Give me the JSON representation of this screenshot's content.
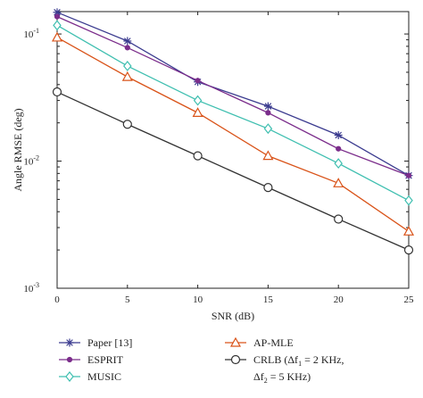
{
  "chart_data": {
    "type": "line",
    "xlabel": "SNR (dB)",
    "ylabel": "Angle RMSE (deg)",
    "xlim": [
      0,
      25
    ],
    "ylim": [
      0.001,
      0.15
    ],
    "yscale": "log",
    "grid": false,
    "legend_position": "below",
    "x": [
      0,
      5,
      10,
      15,
      20,
      25
    ],
    "x_tick_labels": [
      "0",
      "5",
      "10",
      "15",
      "20",
      "25"
    ],
    "y_tick_labels": [
      {
        "value": 0.1,
        "base": "10",
        "exp": "-1"
      },
      {
        "value": 0.01,
        "base": "10",
        "exp": "-2"
      },
      {
        "value": 0.001,
        "base": "10",
        "exp": "-3"
      }
    ],
    "series": [
      {
        "name": "Paper [13]",
        "color": "#3b3b8f",
        "marker": "star",
        "values": [
          0.148,
          0.088,
          0.042,
          0.027,
          0.016,
          0.0077
        ]
      },
      {
        "name": "ESPRIT",
        "color": "#7b2d8b",
        "marker": "dot",
        "values": [
          0.137,
          0.078,
          0.043,
          0.024,
          0.0125,
          0.0077
        ]
      },
      {
        "name": "MUSIC",
        "color": "#3fbfb0",
        "marker": "diamond",
        "values": [
          0.117,
          0.056,
          0.03,
          0.018,
          0.0096,
          0.0049
        ]
      },
      {
        "name": "AP-MLE",
        "color": "#d95319",
        "marker": "triangle",
        "values": [
          0.094,
          0.046,
          0.024,
          0.011,
          0.0067,
          0.0028
        ]
      },
      {
        "name_line1": "CRLB (Δf",
        "name_line1_sub": "1",
        "name_line1_tail": " = 2 KHz,",
        "name_line2": "Δf",
        "name_line2_sub": "2",
        "name_line2_tail": " = 5 KHz)",
        "color": "#333333",
        "marker": "circle",
        "values": [
          0.035,
          0.0195,
          0.011,
          0.0062,
          0.0035,
          0.002
        ]
      }
    ]
  }
}
